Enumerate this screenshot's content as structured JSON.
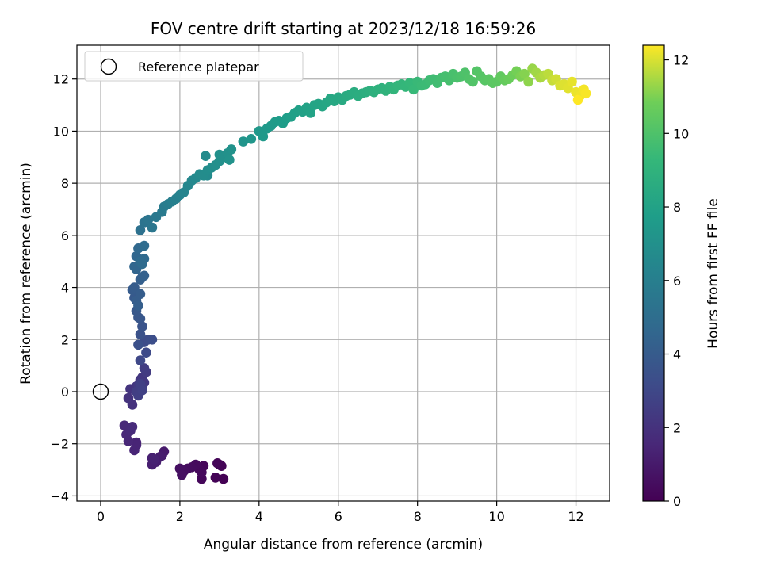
{
  "chart_data": {
    "type": "scatter",
    "title": "FOV centre drift starting at 2023/12/18 16:59:26",
    "xlabel": "Angular distance from reference (arcmin)",
    "ylabel": "Rotation from reference (arcmin)",
    "xlim": [
      -0.6,
      12.85
    ],
    "ylim": [
      -4.2,
      13.3
    ],
    "xticks": [
      0,
      2,
      4,
      6,
      8,
      10,
      12
    ],
    "yticks": [
      -4,
      -2,
      0,
      2,
      4,
      6,
      8,
      10,
      12
    ],
    "grid": true,
    "legend": {
      "position": "top-left",
      "entries": [
        {
          "label": "Reference platepar",
          "marker": "hollow-circle"
        }
      ]
    },
    "reference_point": {
      "x": 0,
      "y": 0
    },
    "colorbar": {
      "label": "Hours from first FF file",
      "colormap": "viridis",
      "range": [
        0,
        12.4
      ],
      "ticks": [
        0,
        2,
        4,
        6,
        8,
        10,
        12
      ]
    },
    "series": [
      {
        "color_encoding": "hours",
        "x": [
          3.1,
          3.0,
          2.9,
          2.95,
          2.6,
          2.55,
          2.5,
          2.4,
          2.3,
          2.2,
          2.1,
          2.0,
          2.05,
          2.55,
          3.05,
          1.6,
          1.55,
          1.5,
          1.4,
          1.3,
          1.3,
          1.35,
          0.9,
          0.85,
          0.7,
          0.65,
          0.6,
          0.75,
          0.8,
          0.9,
          0.8,
          0.7,
          0.75,
          0.9,
          1.0,
          1.05,
          1.1,
          0.95,
          1.15,
          1.1,
          1.05,
          0.9,
          0.95,
          1.0,
          1.05,
          1.1,
          1.2,
          1.3,
          1.15,
          1.0,
          0.95,
          1.0,
          1.05,
          1.0,
          0.95,
          0.9,
          0.85,
          0.8,
          0.85,
          0.9,
          0.95,
          1.0,
          1.05,
          1.1,
          1.0,
          0.9,
          0.85,
          0.9,
          0.95,
          1.0,
          1.05,
          1.1,
          1.1,
          1.0,
          1.1,
          1.2,
          1.3,
          1.4,
          1.55,
          1.6,
          1.7,
          1.8,
          1.9,
          2.0,
          2.1,
          2.2,
          2.3,
          2.4,
          2.5,
          2.6,
          2.7,
          2.8,
          2.9,
          3.0,
          3.1,
          3.2,
          3.3,
          2.65,
          2.7,
          3.0,
          3.25,
          3.6,
          3.8,
          4.0,
          4.1,
          4.2,
          4.3,
          4.4,
          4.5,
          4.6,
          4.7,
          4.8,
          4.9,
          5.0,
          5.1,
          5.2,
          5.3,
          5.4,
          5.5,
          5.6,
          5.7,
          5.8,
          5.9,
          6.0,
          6.1,
          6.2,
          6.3,
          6.4,
          6.5,
          6.6,
          6.7,
          6.8,
          6.9,
          7.0,
          7.1,
          7.2,
          7.3,
          7.4,
          7.5,
          7.6,
          7.7,
          7.8,
          7.9,
          8.0,
          8.1,
          8.2,
          8.3,
          8.4,
          8.5,
          8.6,
          8.7,
          8.8,
          8.9,
          9.0,
          9.1,
          9.2,
          9.3,
          9.4,
          9.5,
          9.6,
          9.7,
          9.8,
          9.9,
          10.0,
          10.1,
          10.2,
          10.3,
          10.4,
          10.5,
          10.6,
          10.7,
          10.8,
          10.9,
          11.0,
          11.1,
          11.2,
          11.3,
          11.4,
          11.5,
          11.6,
          11.7,
          11.8,
          11.9,
          12.0,
          12.1,
          12.2,
          12.25,
          12.05
        ],
        "y": [
          -3.35,
          -2.8,
          -3.3,
          -2.75,
          -2.85,
          -3.35,
          -3.0,
          -2.8,
          -2.9,
          -2.95,
          -3.05,
          -2.95,
          -3.2,
          -3.1,
          -2.85,
          -2.3,
          -2.45,
          -2.5,
          -2.7,
          -2.8,
          -2.55,
          -2.6,
          -1.95,
          -2.25,
          -1.9,
          -1.65,
          -1.3,
          -1.5,
          -1.35,
          -2.05,
          -0.5,
          -0.25,
          0.1,
          0.2,
          0.45,
          0.55,
          0.35,
          0.25,
          0.75,
          0.9,
          0.15,
          0.0,
          -0.15,
          0.3,
          0.05,
          1.9,
          2.0,
          2.0,
          1.5,
          1.2,
          1.8,
          2.2,
          2.5,
          2.8,
          2.85,
          3.1,
          3.6,
          3.9,
          4.0,
          3.5,
          3.3,
          4.3,
          4.4,
          4.45,
          3.75,
          4.7,
          4.8,
          5.2,
          5.5,
          5.0,
          4.9,
          5.6,
          5.1,
          6.2,
          6.5,
          6.6,
          6.3,
          6.7,
          6.9,
          7.1,
          7.2,
          7.3,
          7.4,
          7.55,
          7.65,
          7.9,
          8.1,
          8.2,
          8.35,
          8.3,
          8.5,
          8.6,
          8.7,
          8.85,
          9.0,
          9.15,
          9.3,
          9.05,
          8.3,
          9.1,
          8.9,
          9.6,
          9.7,
          10.0,
          9.8,
          10.1,
          10.2,
          10.35,
          10.4,
          10.3,
          10.5,
          10.55,
          10.7,
          10.8,
          10.75,
          10.9,
          10.7,
          11.0,
          11.05,
          10.95,
          11.1,
          11.25,
          11.15,
          11.3,
          11.2,
          11.35,
          11.4,
          11.5,
          11.35,
          11.45,
          11.5,
          11.55,
          11.5,
          11.6,
          11.65,
          11.55,
          11.7,
          11.6,
          11.75,
          11.8,
          11.7,
          11.85,
          11.6,
          11.9,
          11.75,
          11.8,
          11.95,
          12.0,
          11.85,
          12.05,
          12.1,
          11.95,
          12.2,
          12.05,
          12.1,
          12.25,
          12.0,
          11.9,
          12.3,
          12.1,
          11.95,
          12.0,
          11.85,
          11.9,
          12.1,
          11.95,
          12.0,
          12.15,
          12.3,
          12.1,
          12.2,
          11.9,
          12.4,
          12.25,
          12.05,
          12.15,
          12.2,
          11.95,
          12.0,
          11.75,
          11.8,
          11.65,
          11.9,
          11.5,
          11.35,
          11.6,
          11.45,
          11.2
        ],
        "hours": [
          0.0,
          0.05,
          0.1,
          0.15,
          0.2,
          0.25,
          0.3,
          0.35,
          0.4,
          0.45,
          0.5,
          0.55,
          0.6,
          0.3,
          0.1,
          1.0,
          1.05,
          1.1,
          1.15,
          1.2,
          1.25,
          1.3,
          1.4,
          1.45,
          1.5,
          1.55,
          1.6,
          1.65,
          1.7,
          1.45,
          2.0,
          2.05,
          2.1,
          2.15,
          2.2,
          2.25,
          2.3,
          2.35,
          2.4,
          2.45,
          2.5,
          2.55,
          2.6,
          2.65,
          2.7,
          3.2,
          3.25,
          3.3,
          3.1,
          3.0,
          3.4,
          3.5,
          3.6,
          3.7,
          3.75,
          3.8,
          3.9,
          4.0,
          4.05,
          4.1,
          4.15,
          4.2,
          4.25,
          4.3,
          4.1,
          4.5,
          4.55,
          4.6,
          4.7,
          4.8,
          4.85,
          4.9,
          4.75,
          5.2,
          5.3,
          5.4,
          5.5,
          5.6,
          5.7,
          5.8,
          5.9,
          6.0,
          6.1,
          6.2,
          6.3,
          6.4,
          6.5,
          6.6,
          6.7,
          6.75,
          6.8,
          6.85,
          6.9,
          6.95,
          7.0,
          7.05,
          7.1,
          6.7,
          6.65,
          7.0,
          7.1,
          7.2,
          7.3,
          7.4,
          7.45,
          7.5,
          7.55,
          7.6,
          7.65,
          7.7,
          7.75,
          7.8,
          7.85,
          7.9,
          7.95,
          8.0,
          8.05,
          8.1,
          8.15,
          8.2,
          8.25,
          8.3,
          8.35,
          8.4,
          8.45,
          8.5,
          8.55,
          8.6,
          8.65,
          8.7,
          8.75,
          8.8,
          8.85,
          8.9,
          8.95,
          9.0,
          9.05,
          9.1,
          9.15,
          9.2,
          9.25,
          9.3,
          9.35,
          9.4,
          9.45,
          9.5,
          9.55,
          9.6,
          9.65,
          9.7,
          9.75,
          9.8,
          9.85,
          9.9,
          9.95,
          10.0,
          10.05,
          10.1,
          10.15,
          10.2,
          10.25,
          10.3,
          10.35,
          10.4,
          10.5,
          10.6,
          10.7,
          10.8,
          10.9,
          11.0,
          11.1,
          11.2,
          11.3,
          11.4,
          11.5,
          11.6,
          11.7,
          11.8,
          11.9,
          12.0,
          12.05,
          12.1,
          12.15,
          12.2,
          12.25,
          12.3,
          12.35,
          12.4
        ]
      }
    ]
  }
}
